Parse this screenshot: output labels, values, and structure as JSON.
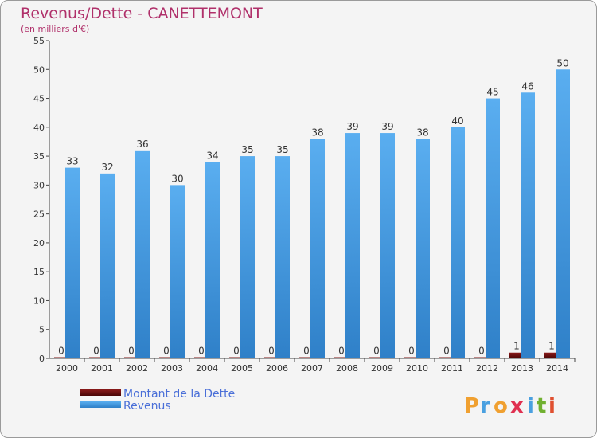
{
  "chart_data": {
    "type": "bar",
    "title": "Revenus/Dette - CANETTEMONT",
    "subtitle": "(en milliers d'€)",
    "categories": [
      "2000",
      "2001",
      "2002",
      "2003",
      "2004",
      "2005",
      "2006",
      "2007",
      "2008",
      "2009",
      "2010",
      "2011",
      "2012",
      "2013",
      "2014"
    ],
    "series": [
      {
        "name": "Montant de la Dette",
        "color": "#6b0f0f",
        "values": [
          0,
          0,
          0,
          0,
          0,
          0,
          0,
          0,
          0,
          0,
          0,
          0,
          0,
          1,
          1
        ]
      },
      {
        "name": "Revenus",
        "color": "#4a9fe0",
        "values": [
          33,
          32,
          36,
          30,
          34,
          35,
          35,
          38,
          39,
          39,
          38,
          40,
          45,
          46,
          50
        ]
      }
    ],
    "ylim": [
      0,
      55
    ],
    "yticks": [
      0,
      5,
      10,
      15,
      20,
      25,
      30,
      35,
      40,
      45,
      50,
      55
    ],
    "grid": false,
    "legend_position": "bottom-left"
  },
  "logo": {
    "letters": [
      "P",
      "r",
      "o",
      "x",
      "i",
      "t",
      "i"
    ],
    "colors": [
      "#f0a030",
      "#4aa0e0",
      "#f0a030",
      "#e03050",
      "#4aa0e0",
      "#70b030",
      "#e05030"
    ]
  }
}
